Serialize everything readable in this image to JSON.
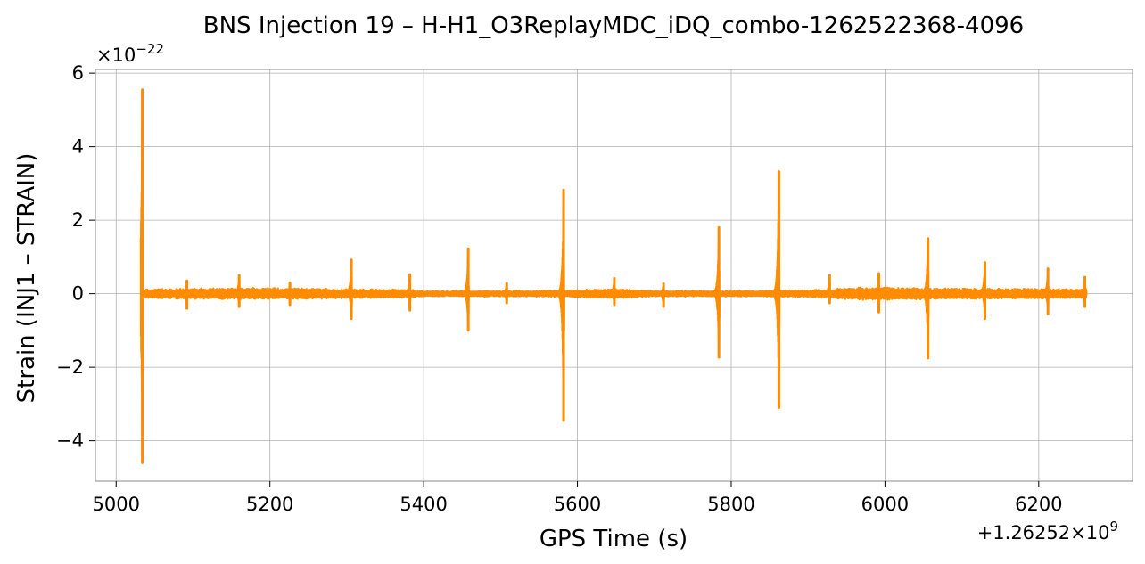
{
  "chart_data": {
    "type": "line",
    "title": "BNS Injection 19 – H-H1_O3ReplayMDC_iDQ_combo-1262522368-4096",
    "xlabel": "GPS Time (s)",
    "ylabel": "Strain (INJ1 – STRAIN)",
    "x_offset_label": "+1.26252×10",
    "x_offset_exp": "9",
    "y_scale_label": "×10",
    "y_scale_exp": "−22",
    "xlim": [
      4973,
      6322
    ],
    "ylim": [
      -5.1,
      6.1
    ],
    "x_ticks": [
      5000,
      5200,
      5400,
      5600,
      5800,
      6000,
      6200
    ],
    "x_tick_labels": [
      "5000",
      "5200",
      "5400",
      "5600",
      "5800",
      "6000",
      "6200"
    ],
    "y_ticks": [
      -4,
      -2,
      0,
      2,
      4,
      6
    ],
    "y_tick_labels": [
      "−4",
      "−2",
      "0",
      "2",
      "4",
      "6"
    ],
    "grid": true,
    "line_color": "#ff8c00",
    "x_range_data": [
      5032,
      6262
    ],
    "noise_level": [
      [
        5032,
        0.12
      ],
      [
        5040,
        0.12
      ],
      [
        5060,
        0.13
      ],
      [
        5080,
        0.15
      ],
      [
        5100,
        0.15
      ],
      [
        5160,
        0.16
      ],
      [
        5220,
        0.16
      ],
      [
        5300,
        0.13
      ],
      [
        5380,
        0.12
      ],
      [
        5400,
        0.08
      ],
      [
        5460,
        0.08
      ],
      [
        5540,
        0.08
      ],
      [
        5580,
        0.09
      ],
      [
        5640,
        0.14
      ],
      [
        5700,
        0.08
      ],
      [
        5780,
        0.08
      ],
      [
        5820,
        0.08
      ],
      [
        5900,
        0.1
      ],
      [
        5960,
        0.17
      ],
      [
        6000,
        0.17
      ],
      [
        6100,
        0.15
      ],
      [
        6200,
        0.14
      ],
      [
        6262,
        0.13
      ]
    ],
    "spikes": [
      {
        "x": 5034,
        "max": 5.55,
        "min": -4.6
      },
      {
        "x": 5092,
        "max": 0.35,
        "min": -0.4
      },
      {
        "x": 5160,
        "max": 0.5,
        "min": -0.35
      },
      {
        "x": 5226,
        "max": 0.3,
        "min": -0.3
      },
      {
        "x": 5306,
        "max": 0.92,
        "min": -0.68
      },
      {
        "x": 5382,
        "max": 0.52,
        "min": -0.45
      },
      {
        "x": 5458,
        "max": 1.22,
        "min": -1.0
      },
      {
        "x": 5508,
        "max": 0.28,
        "min": -0.25
      },
      {
        "x": 5582,
        "max": 2.82,
        "min": -3.45
      },
      {
        "x": 5648,
        "max": 0.42,
        "min": -0.3
      },
      {
        "x": 5712,
        "max": 0.27,
        "min": -0.35
      },
      {
        "x": 5784,
        "max": 1.8,
        "min": -1.73
      },
      {
        "x": 5862,
        "max": 3.32,
        "min": -3.1
      },
      {
        "x": 5928,
        "max": 0.5,
        "min": -0.25
      },
      {
        "x": 5992,
        "max": 0.55,
        "min": -0.5
      },
      {
        "x": 6056,
        "max": 1.5,
        "min": -1.75
      },
      {
        "x": 6130,
        "max": 0.85,
        "min": -0.68
      },
      {
        "x": 6212,
        "max": 0.68,
        "min": -0.55
      },
      {
        "x": 6260,
        "max": 0.45,
        "min": -0.35
      }
    ]
  }
}
